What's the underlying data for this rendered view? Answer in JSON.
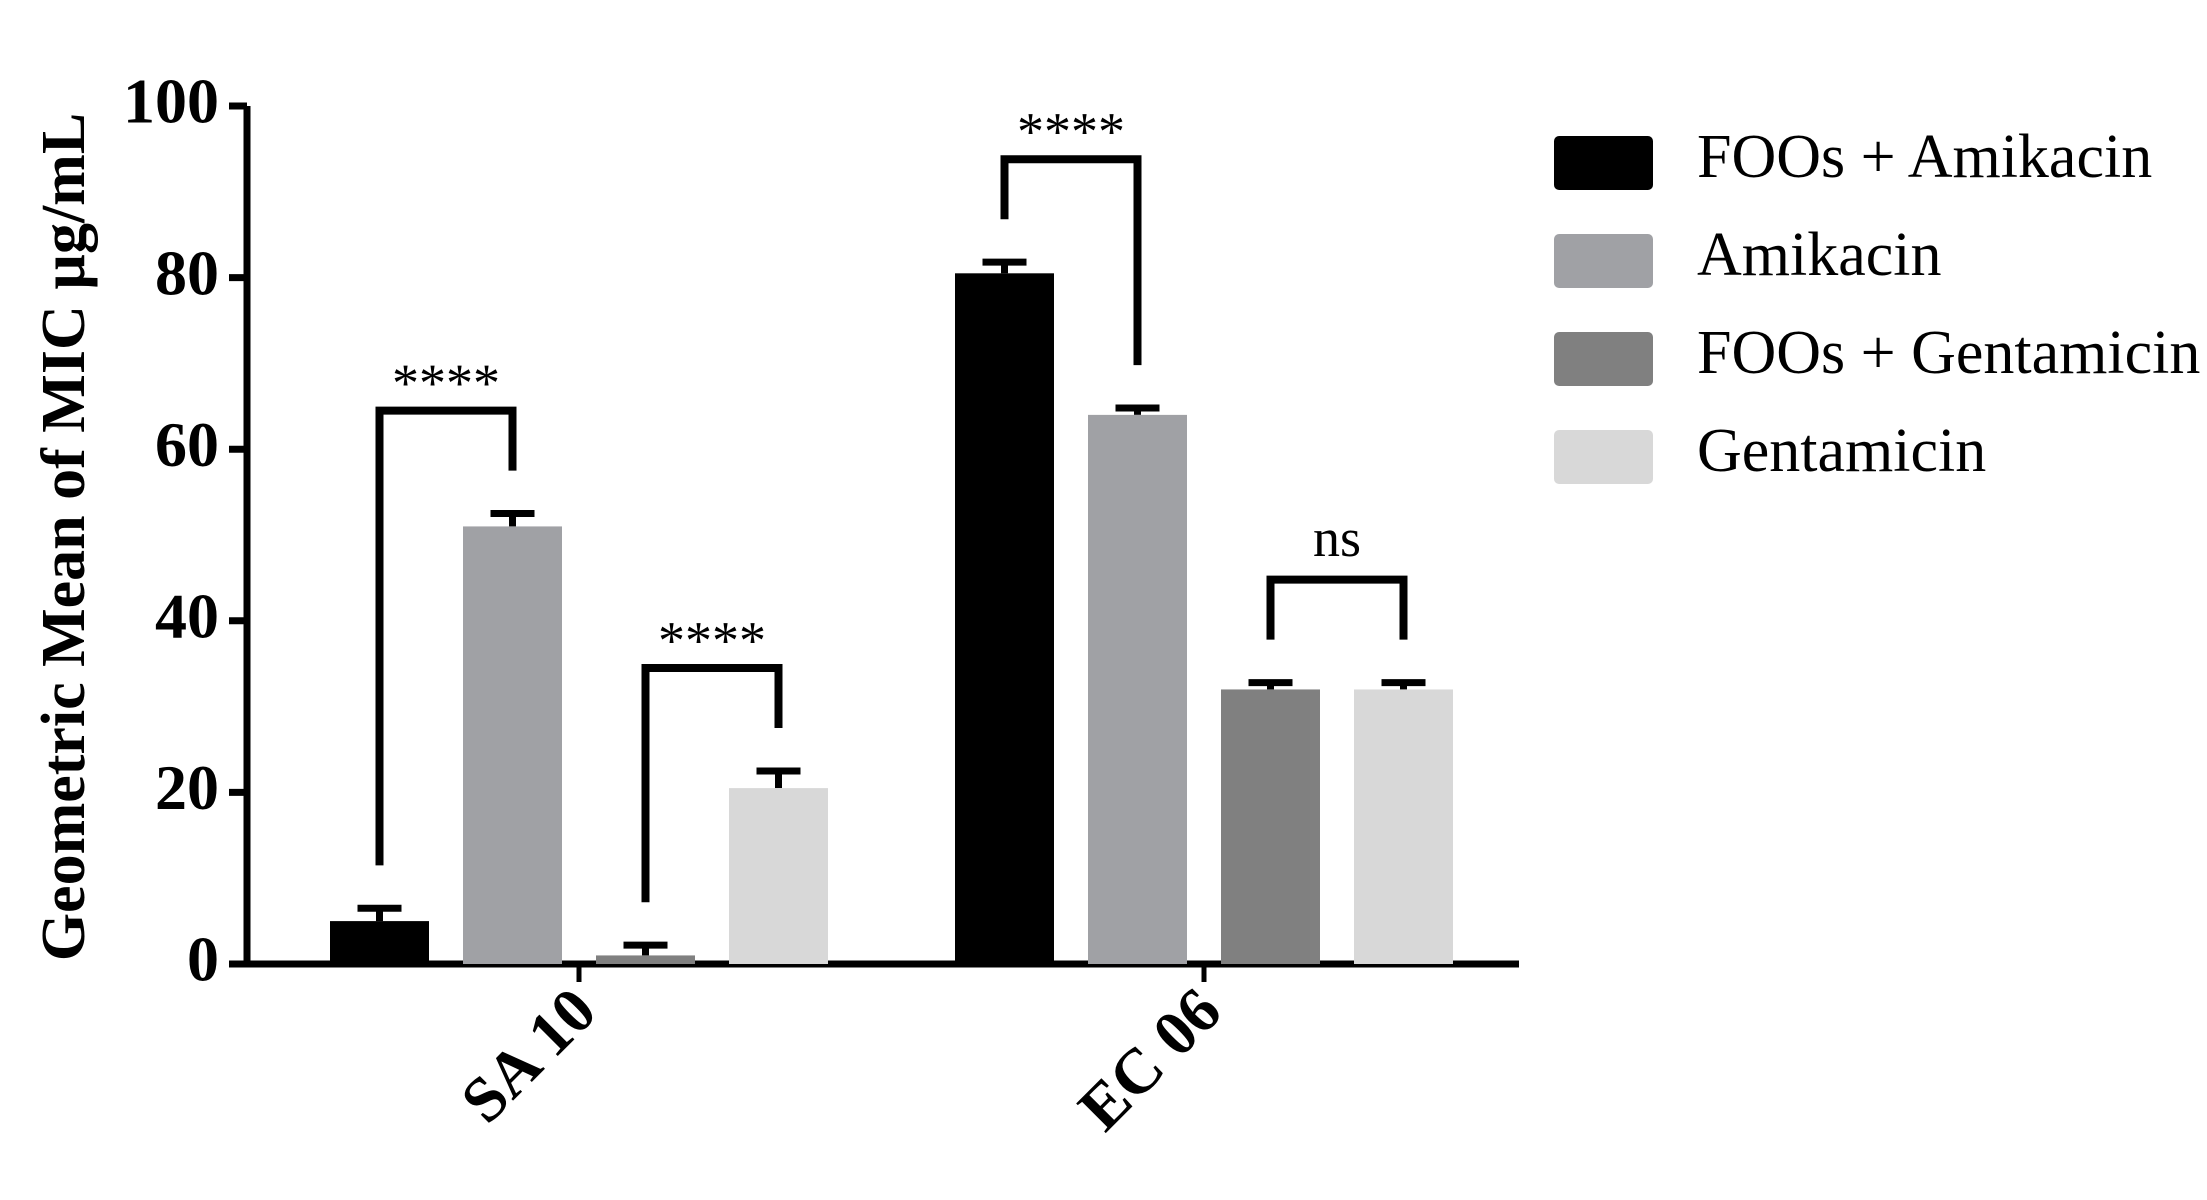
{
  "chart_data": {
    "type": "bar",
    "y_label": "Geometric Mean of MIC µg/mL",
    "categories": [
      "SA 10",
      "EC 06"
    ],
    "series": [
      {
        "name": "FOOs + Amikacin",
        "color": "#000000",
        "values": [
          5,
          80.5
        ],
        "errors": [
          1.5,
          1.3
        ]
      },
      {
        "name": "Amikacin",
        "color": "#a0a1a5",
        "values": [
          51,
          64
        ],
        "errors": [
          1.5,
          0.8
        ]
      },
      {
        "name": "FOOs + Gentamicin",
        "color": "#808080",
        "values": [
          1,
          32
        ],
        "errors": [
          1.2,
          0.8
        ]
      },
      {
        "name": " Gentamicin",
        "color": "#d8d8d8",
        "values": [
          20.5,
          32
        ],
        "errors": [
          2,
          0.8
        ]
      }
    ],
    "annotations": [
      {
        "text": "****",
        "category": "SA 10",
        "pair": [
          "FOOs + Amikacin",
          "Amikacin"
        ]
      },
      {
        "text": "****",
        "category": "SA 10",
        "pair": [
          "FOOs + Gentamicin",
          " Gentamicin"
        ]
      },
      {
        "text": "****",
        "category": "EC 06",
        "pair": [
          "FOOs + Amikacin",
          "Amikacin"
        ]
      },
      {
        "text": "ns",
        "category": "EC 06",
        "pair": [
          "FOOs + Gentamicin",
          " Gentamicin"
        ]
      }
    ],
    "ylim": [
      0,
      100
    ],
    "yticks": [
      0,
      20,
      40,
      60,
      80,
      100
    ]
  }
}
